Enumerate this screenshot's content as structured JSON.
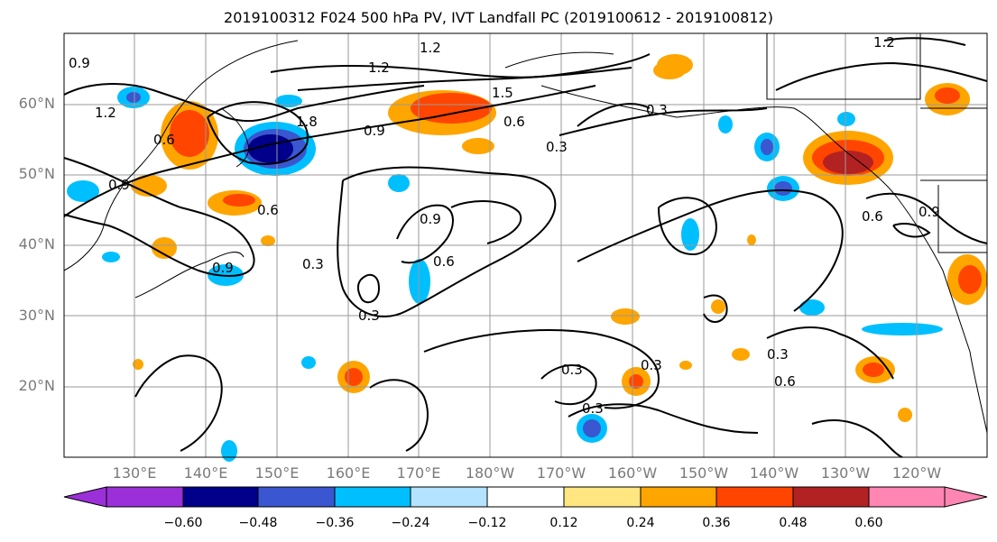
{
  "title": "2019100312 F024 500 hPa PV, IVT Landfall PC (2019100612 - 2019100812)",
  "lat_labels": [
    "60°N",
    "50°N",
    "40°N",
    "30°N",
    "20°N"
  ],
  "lon_labels": [
    "130°E",
    "140°E",
    "150°E",
    "160°E",
    "170°E",
    "180°W",
    "170°W",
    "160°W",
    "150°W",
    "140°W",
    "130°W",
    "120°W"
  ],
  "contour_labels": [
    "0.9",
    "1.2",
    "1.2",
    "0.6",
    "0.9",
    "0.6",
    "0.3",
    "0.9",
    "0.6",
    "0.3",
    "0.9",
    "0.6",
    "0.3",
    "0.3",
    "0.3",
    "0.3",
    "0.6",
    "0.3",
    "1.5",
    "0.9",
    "0.6",
    "1.2",
    "0.3",
    "0.9",
    "1.8",
    "1.2"
  ],
  "colorbar": {
    "ticks": [
      "−0.60",
      "−0.48",
      "−0.36",
      "−0.24",
      "−0.12",
      "0.12",
      "0.24",
      "0.36",
      "0.48",
      "0.60"
    ],
    "colors": [
      "#9b30d9",
      "#00008b",
      "#3a56d0",
      "#00bfff",
      "#b3e3ff",
      "#ffffff",
      "#ffe680",
      "#ffa500",
      "#ff4500",
      "#b22222",
      "#ff85b3"
    ]
  }
}
